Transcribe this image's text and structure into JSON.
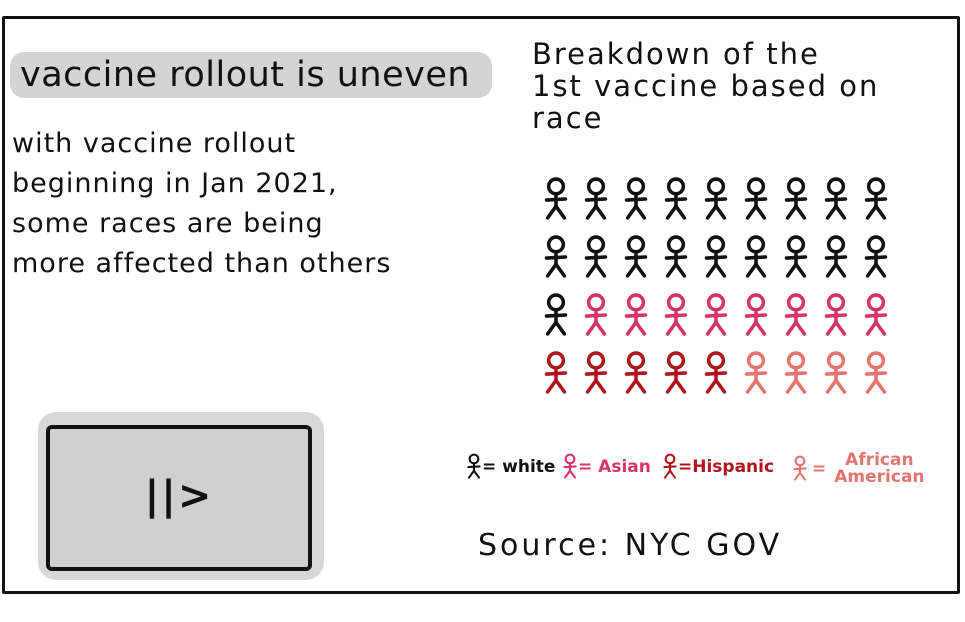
{
  "header": {
    "title": "vaccine rollout is uneven"
  },
  "body_text": {
    "lines": [
      "with vaccine rollout",
      "beginning in Jan 2021,",
      "some races are being",
      "more affected than others"
    ]
  },
  "chart_data": {
    "type": "pictogram",
    "title_lines": [
      "Breakdown of the",
      "1st vaccine based on",
      "race"
    ],
    "rows": [
      [
        "White",
        "White",
        "White",
        "White",
        "White",
        "White",
        "White",
        "White",
        "White"
      ],
      [
        "White",
        "White",
        "White",
        "White",
        "White",
        "White",
        "White",
        "White",
        "White"
      ],
      [
        "White",
        "Asian",
        "Asian",
        "Asian",
        "Asian",
        "Asian",
        "Asian",
        "Asian",
        "Asian"
      ],
      [
        "Hispanic",
        "Hispanic",
        "Hispanic",
        "Hispanic",
        "Hispanic",
        "African American",
        "African American",
        "African American",
        "African American"
      ]
    ],
    "counts": {
      "White": 19,
      "Asian": 8,
      "Hispanic": 5,
      "African American": 4
    },
    "colors": {
      "White": "#111111",
      "Asian": "#d6336c",
      "Hispanic": "#b0151c",
      "African American": "#e3746e"
    },
    "legend": [
      {
        "category": "White",
        "label": "= white"
      },
      {
        "category": "Asian",
        "label": "= Asian"
      },
      {
        "category": "Hispanic",
        "label": "=Hispanic"
      },
      {
        "category": "African American",
        "label": "=",
        "label_lines": [
          "African",
          "American"
        ]
      }
    ]
  },
  "source": {
    "text": "Source: NYC GOV"
  },
  "video": {
    "play_glyph": "||>",
    "icon": "play-pause-icon"
  }
}
